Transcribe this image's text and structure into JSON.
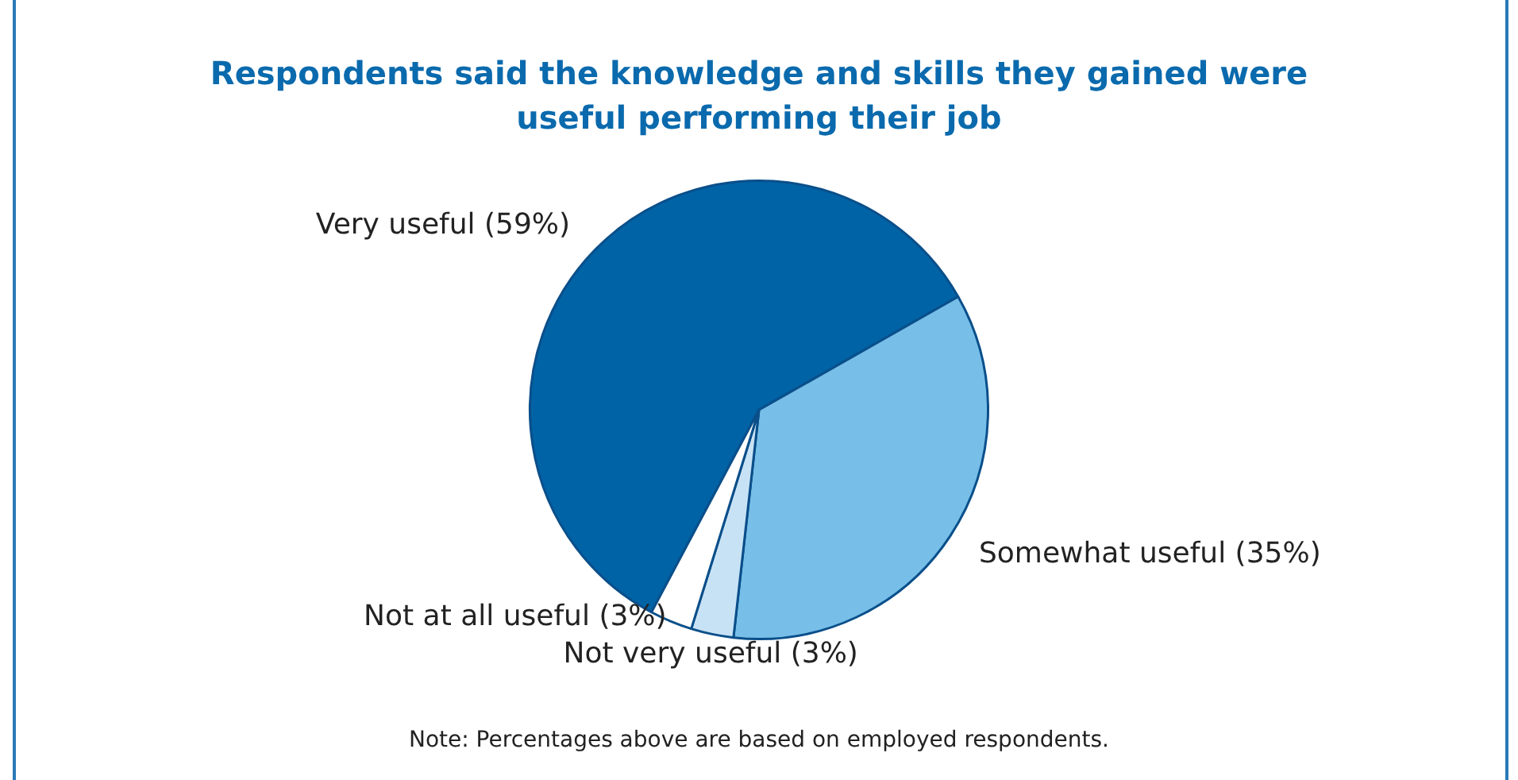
{
  "chart_data": {
    "type": "pie",
    "title": "Respondents said the knowledge and skills they gained were useful performing their job",
    "categories": [
      "Very useful (59%)",
      "Somewhat useful (35%)",
      "Not very useful (3%)",
      "Not at all useful (3%)"
    ],
    "values": [
      59,
      35,
      3,
      3
    ],
    "colors": [
      "#0063a6",
      "#77bfe8",
      "#c8e2f5",
      "#ffffff"
    ],
    "annotations": [
      "Note: Percentages above are based on employed respondents."
    ],
    "legend": false
  }
}
